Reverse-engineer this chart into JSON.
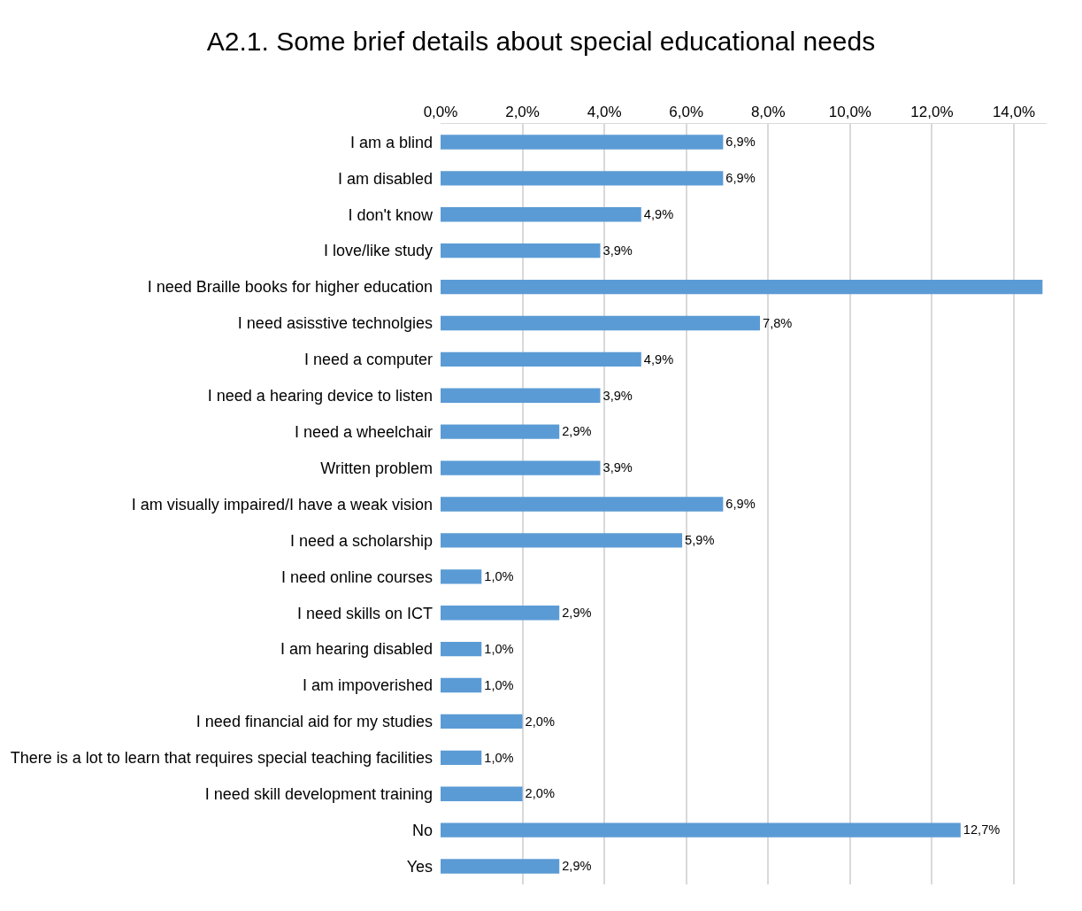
{
  "chart_data": {
    "type": "bar",
    "orientation": "horizontal",
    "title": "A2.1. Some brief details about special educational needs",
    "categories": [
      "I am a blind",
      "I am disabled",
      "I don't know",
      "I love/like study",
      "I need Braille books for higher education",
      "I need asisstive technolgies",
      "I need a computer",
      "I need a hearing device to listen",
      "I need a wheelchair",
      "Written problem",
      "I am visually impaired/I have a weak vision",
      "I need a scholarship",
      "I need online courses",
      "I need skills on ICT",
      "I am hearing disabled",
      "I am impoverished",
      "I need financial aid for my studies",
      "There is a lot to learn that requires special teaching facilities",
      "I need skill development training",
      "No",
      "Yes"
    ],
    "values": [
      6.9,
      6.9,
      4.9,
      3.9,
      14.7,
      7.8,
      4.9,
      3.9,
      2.9,
      3.9,
      6.9,
      5.9,
      1.0,
      2.9,
      1.0,
      1.0,
      2.0,
      1.0,
      2.0,
      12.7,
      2.9
    ],
    "value_labels": [
      "6,9%",
      "6,9%",
      "4,9%",
      "3,9%",
      null,
      "7,8%",
      "4,9%",
      "3,9%",
      "2,9%",
      "3,9%",
      "6,9%",
      "5,9%",
      "1,0%",
      "2,9%",
      "1,0%",
      "1,0%",
      "2,0%",
      "1,0%",
      "2,0%",
      "12,7%",
      "2,9%"
    ],
    "color": "#5b9bd5",
    "xlim": [
      0,
      14.8
    ],
    "xticks": [
      {
        "value": 0,
        "label": "0,0%"
      },
      {
        "value": 2,
        "label": "2,0%"
      },
      {
        "value": 4,
        "label": "4,0%"
      },
      {
        "value": 6,
        "label": "6,0%"
      },
      {
        "value": 8,
        "label": "8,0%"
      },
      {
        "value": 10,
        "label": "10,0%"
      },
      {
        "value": 12,
        "label": "12,0%"
      },
      {
        "value": 14,
        "label": "14,0%"
      }
    ],
    "grid": "x"
  }
}
